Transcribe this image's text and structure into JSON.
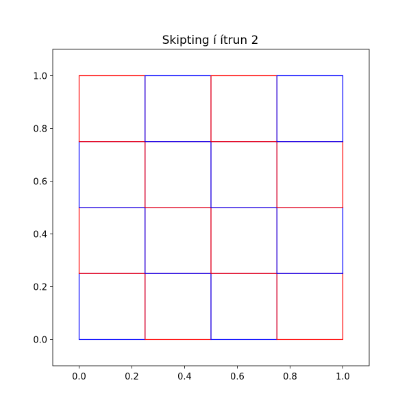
{
  "chart_data": {
    "type": "grid",
    "title": "Skipting í ítrun 2",
    "xlabel": "",
    "ylabel": "",
    "xlim": [
      -0.1,
      1.1
    ],
    "ylim": [
      -0.1,
      1.1
    ],
    "xticks": [
      0.0,
      0.2,
      0.4,
      0.6,
      0.8,
      1.0
    ],
    "yticks": [
      0.0,
      0.2,
      0.4,
      0.6,
      0.8,
      1.0
    ],
    "xtick_labels": [
      "0.0",
      "0.2",
      "0.4",
      "0.6",
      "0.8",
      "1.0"
    ],
    "ytick_labels": [
      "0.0",
      "0.2",
      "0.4",
      "0.6",
      "0.8",
      "1.0"
    ],
    "grid": false,
    "colors": {
      "red": "#ff0000",
      "blue": "#0000ff"
    },
    "cells": [
      {
        "x0": 0.0,
        "x1": 0.25,
        "y0": 0.0,
        "y1": 0.25,
        "color": "blue"
      },
      {
        "x0": 0.25,
        "x1": 0.5,
        "y0": 0.0,
        "y1": 0.25,
        "color": "red"
      },
      {
        "x0": 0.5,
        "x1": 0.75,
        "y0": 0.0,
        "y1": 0.25,
        "color": "blue"
      },
      {
        "x0": 0.75,
        "x1": 1.0,
        "y0": 0.0,
        "y1": 0.25,
        "color": "red"
      },
      {
        "x0": 0.0,
        "x1": 0.25,
        "y0": 0.25,
        "y1": 0.5,
        "color": "red"
      },
      {
        "x0": 0.25,
        "x1": 0.5,
        "y0": 0.25,
        "y1": 0.5,
        "color": "blue"
      },
      {
        "x0": 0.5,
        "x1": 0.75,
        "y0": 0.25,
        "y1": 0.5,
        "color": "red"
      },
      {
        "x0": 0.75,
        "x1": 1.0,
        "y0": 0.25,
        "y1": 0.5,
        "color": "blue"
      },
      {
        "x0": 0.0,
        "x1": 0.25,
        "y0": 0.5,
        "y1": 0.75,
        "color": "blue"
      },
      {
        "x0": 0.25,
        "x1": 0.5,
        "y0": 0.5,
        "y1": 0.75,
        "color": "red"
      },
      {
        "x0": 0.5,
        "x1": 0.75,
        "y0": 0.5,
        "y1": 0.75,
        "color": "blue"
      },
      {
        "x0": 0.75,
        "x1": 1.0,
        "y0": 0.5,
        "y1": 0.75,
        "color": "red"
      },
      {
        "x0": 0.0,
        "x1": 0.25,
        "y0": 0.75,
        "y1": 1.0,
        "color": "red"
      },
      {
        "x0": 0.25,
        "x1": 0.5,
        "y0": 0.75,
        "y1": 1.0,
        "color": "blue"
      },
      {
        "x0": 0.5,
        "x1": 0.75,
        "y0": 0.75,
        "y1": 1.0,
        "color": "red"
      },
      {
        "x0": 0.75,
        "x1": 1.0,
        "y0": 0.75,
        "y1": 1.0,
        "color": "blue"
      }
    ]
  }
}
